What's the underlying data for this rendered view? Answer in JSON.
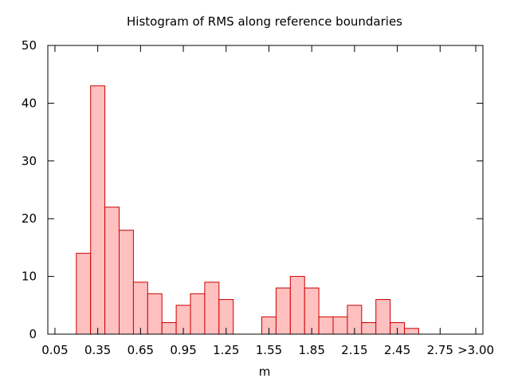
{
  "chart_data": {
    "type": "bar",
    "title": "Histogram of RMS along reference boundaries",
    "xlabel": "m",
    "ylabel": "",
    "ylim": [
      0,
      50
    ],
    "y_ticks": [
      0,
      10,
      20,
      30,
      40,
      50
    ],
    "xlim": [
      0.0,
      3.05
    ],
    "x_ticks": [
      {
        "value": 0.05,
        "label": "0.05"
      },
      {
        "value": 0.35,
        "label": "0.35"
      },
      {
        "value": 0.65,
        "label": "0.65"
      },
      {
        "value": 0.95,
        "label": "0.95"
      },
      {
        "value": 1.25,
        "label": "1.25"
      },
      {
        "value": 1.55,
        "label": "1.55"
      },
      {
        "value": 1.85,
        "label": "1.85"
      },
      {
        "value": 2.15,
        "label": "2.15"
      },
      {
        "value": 2.45,
        "label": "2.45"
      },
      {
        "value": 2.75,
        "label": "2.75"
      },
      {
        "value": 3.0,
        "label": ">3.00"
      }
    ],
    "bin_width": 0.1,
    "bins": [
      {
        "center": 0.25,
        "value": 14
      },
      {
        "center": 0.35,
        "value": 43
      },
      {
        "center": 0.45,
        "value": 22
      },
      {
        "center": 0.55,
        "value": 18
      },
      {
        "center": 0.65,
        "value": 9
      },
      {
        "center": 0.75,
        "value": 7
      },
      {
        "center": 0.85,
        "value": 2
      },
      {
        "center": 0.95,
        "value": 5
      },
      {
        "center": 1.05,
        "value": 7
      },
      {
        "center": 1.15,
        "value": 9
      },
      {
        "center": 1.25,
        "value": 6
      },
      {
        "center": 1.35,
        "value": 0
      },
      {
        "center": 1.45,
        "value": 0
      },
      {
        "center": 1.55,
        "value": 3
      },
      {
        "center": 1.65,
        "value": 8
      },
      {
        "center": 1.75,
        "value": 10
      },
      {
        "center": 1.85,
        "value": 8
      },
      {
        "center": 1.95,
        "value": 3
      },
      {
        "center": 2.05,
        "value": 3
      },
      {
        "center": 2.15,
        "value": 5
      },
      {
        "center": 2.25,
        "value": 2
      },
      {
        "center": 2.35,
        "value": 6
      },
      {
        "center": 2.45,
        "value": 2
      },
      {
        "center": 2.55,
        "value": 1
      }
    ],
    "grid": false,
    "legend": "none",
    "colors": {
      "bar_fill": "#ffc0c0",
      "bar_stroke": "#cc0000",
      "axis": "#000000"
    }
  }
}
